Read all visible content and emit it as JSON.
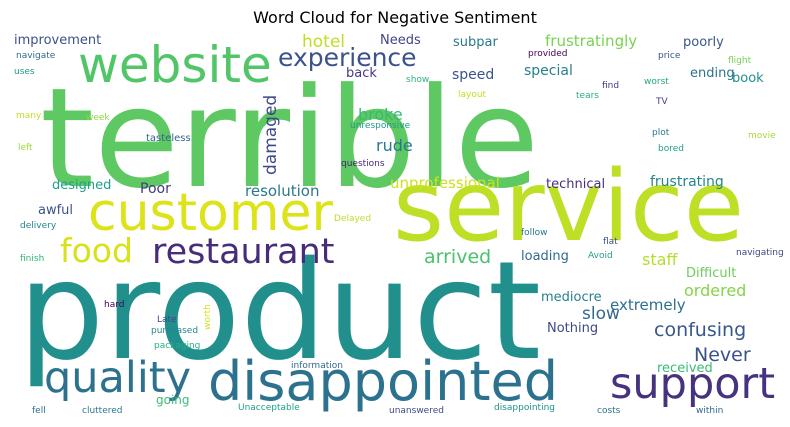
{
  "chart_data": {
    "type": "wordcloud",
    "title": "Word Cloud for Negative Sentiment",
    "words": [
      {
        "text": "terrible",
        "weight": 100,
        "color": "#5ec962"
      },
      {
        "text": "product",
        "weight": 98,
        "color": "#21908d"
      },
      {
        "text": "service",
        "weight": 78,
        "color": "#bddf26"
      },
      {
        "text": "customer",
        "weight": 55,
        "color": "#dde318"
      },
      {
        "text": "disappointed",
        "weight": 53,
        "color": "#2c728e"
      },
      {
        "text": "website",
        "weight": 46,
        "color": "#52c569"
      },
      {
        "text": "quality",
        "weight": 40,
        "color": "#2c728e"
      },
      {
        "text": "support",
        "weight": 40,
        "color": "#46327e"
      },
      {
        "text": "restaurant",
        "weight": 36,
        "color": "#472c7a"
      },
      {
        "text": "food",
        "weight": 33,
        "color": "#d8e219"
      },
      {
        "text": "experience",
        "weight": 24,
        "color": "#3b528b"
      },
      {
        "text": "hotel",
        "weight": 17,
        "color": "#bddf26"
      },
      {
        "text": "arrived",
        "weight": 18,
        "color": "#4ac16d"
      },
      {
        "text": "confusing",
        "weight": 18,
        "color": "#38588c"
      },
      {
        "text": "Never",
        "weight": 17,
        "color": "#3b528b"
      },
      {
        "text": "damaged",
        "weight": 16,
        "color": "#3e4989"
      },
      {
        "text": "frustratingly",
        "weight": 15,
        "color": "#7ad151"
      },
      {
        "text": "broke",
        "weight": 16,
        "color": "#38b977"
      },
      {
        "text": "rude",
        "weight": 16,
        "color": "#2a788e"
      },
      {
        "text": "unprofessional",
        "weight": 15,
        "color": "#d0e11c"
      },
      {
        "text": "resolution",
        "weight": 15,
        "color": "#2a788e"
      },
      {
        "text": "slow",
        "weight": 16,
        "color": "#31688e"
      },
      {
        "text": "staff",
        "weight": 15,
        "color": "#b5de2b"
      },
      {
        "text": "ordered",
        "weight": 16,
        "color": "#84d44b"
      },
      {
        "text": "extremely",
        "weight": 15,
        "color": "#2d708e"
      },
      {
        "text": "Poor",
        "weight": 14,
        "color": "#443a83"
      },
      {
        "text": "frustrating",
        "weight": 14,
        "color": "#25858e"
      },
      {
        "text": "special",
        "weight": 14,
        "color": "#277f8e"
      },
      {
        "text": "speed",
        "weight": 14,
        "color": "#3b528b"
      },
      {
        "text": "improvement",
        "weight": 13,
        "color": "#3b528b"
      },
      {
        "text": "subpar",
        "weight": 13,
        "color": "#2a788e"
      },
      {
        "text": "poorly",
        "weight": 13,
        "color": "#39568c"
      },
      {
        "text": "ending",
        "weight": 13,
        "color": "#2c728e"
      },
      {
        "text": "book",
        "weight": 13,
        "color": "#20928c"
      },
      {
        "text": "Needs",
        "weight": 13,
        "color": "#414487"
      },
      {
        "text": "back",
        "weight": 13,
        "color": "#443983"
      },
      {
        "text": "designed",
        "weight": 13,
        "color": "#1f9e89"
      },
      {
        "text": "awful",
        "weight": 13,
        "color": "#3b528b"
      },
      {
        "text": "technical",
        "weight": 13,
        "color": "#46307e"
      },
      {
        "text": "loading",
        "weight": 13,
        "color": "#306a8e"
      },
      {
        "text": "Difficult",
        "weight": 13,
        "color": "#6ccd5a"
      },
      {
        "text": "mediocre",
        "weight": 13,
        "color": "#27808e"
      },
      {
        "text": "Nothing",
        "weight": 13,
        "color": "#3e4989"
      },
      {
        "text": "received",
        "weight": 13,
        "color": "#3aba76"
      },
      {
        "text": "going",
        "weight": 12,
        "color": "#3dbc74"
      },
      {
        "text": "navigate",
        "weight": 9,
        "color": "#31688e"
      },
      {
        "text": "uses",
        "weight": 9,
        "color": "#1f988b"
      },
      {
        "text": "many",
        "weight": 9,
        "color": "#c0df25"
      },
      {
        "text": "left",
        "weight": 9,
        "color": "#a0da39"
      },
      {
        "text": "week",
        "weight": 9,
        "color": "#8ed645"
      },
      {
        "text": "tasteless",
        "weight": 10,
        "color": "#33638d"
      },
      {
        "text": "unresponsive",
        "weight": 9,
        "color": "#1f9a8a"
      },
      {
        "text": "questions",
        "weight": 9,
        "color": "#482576"
      },
      {
        "text": "provided",
        "weight": 9,
        "color": "#440154"
      },
      {
        "text": "price",
        "weight": 9,
        "color": "#3b528b"
      },
      {
        "text": "flight",
        "weight": 9,
        "color": "#7ad151"
      },
      {
        "text": "show",
        "weight": 9,
        "color": "#2fb47c"
      },
      {
        "text": "find",
        "weight": 9,
        "color": "#443a83"
      },
      {
        "text": "worst",
        "weight": 9,
        "color": "#22a884"
      },
      {
        "text": "layout",
        "weight": 9,
        "color": "#c2df23"
      },
      {
        "text": "tears",
        "weight": 9,
        "color": "#29af7f"
      },
      {
        "text": "TV",
        "weight": 9,
        "color": "#433e85"
      },
      {
        "text": "plot",
        "weight": 9,
        "color": "#2a788e"
      },
      {
        "text": "movie",
        "weight": 9,
        "color": "#a8db34"
      },
      {
        "text": "bored",
        "weight": 9,
        "color": "#1fa088"
      },
      {
        "text": "delivery",
        "weight": 9,
        "color": "#26828e"
      },
      {
        "text": "finish",
        "weight": 9,
        "color": "#32b67a"
      },
      {
        "text": "Delayed",
        "weight": 9,
        "color": "#bddf26"
      },
      {
        "text": "follow",
        "weight": 9,
        "color": "#2a788e"
      },
      {
        "text": "flat",
        "weight": 9,
        "color": "#3b528b"
      },
      {
        "text": "Avoid",
        "weight": 9,
        "color": "#1fa188"
      },
      {
        "text": "navigating",
        "weight": 9,
        "color": "#3f4788"
      },
      {
        "text": "hard",
        "weight": 9,
        "color": "#440154"
      },
      {
        "text": "Late",
        "weight": 9,
        "color": "#3e4989"
      },
      {
        "text": "purchased",
        "weight": 9,
        "color": "#24878e"
      },
      {
        "text": "packaging",
        "weight": 9,
        "color": "#26ad81"
      },
      {
        "text": "worth",
        "weight": 9,
        "color": "#d2e21b"
      },
      {
        "text": "information",
        "weight": 9,
        "color": "#31688e"
      },
      {
        "text": "fell",
        "weight": 9,
        "color": "#2c728e"
      },
      {
        "text": "cluttered",
        "weight": 9,
        "color": "#2a788e"
      },
      {
        "text": "Unacceptable",
        "weight": 9,
        "color": "#20a386"
      },
      {
        "text": "unanswered",
        "weight": 9,
        "color": "#3e4989"
      },
      {
        "text": "disappointing",
        "weight": 9,
        "color": "#21918c"
      },
      {
        "text": "costs",
        "weight": 9,
        "color": "#2c728e"
      },
      {
        "text": "within",
        "weight": 9,
        "color": "#31688e"
      }
    ]
  }
}
